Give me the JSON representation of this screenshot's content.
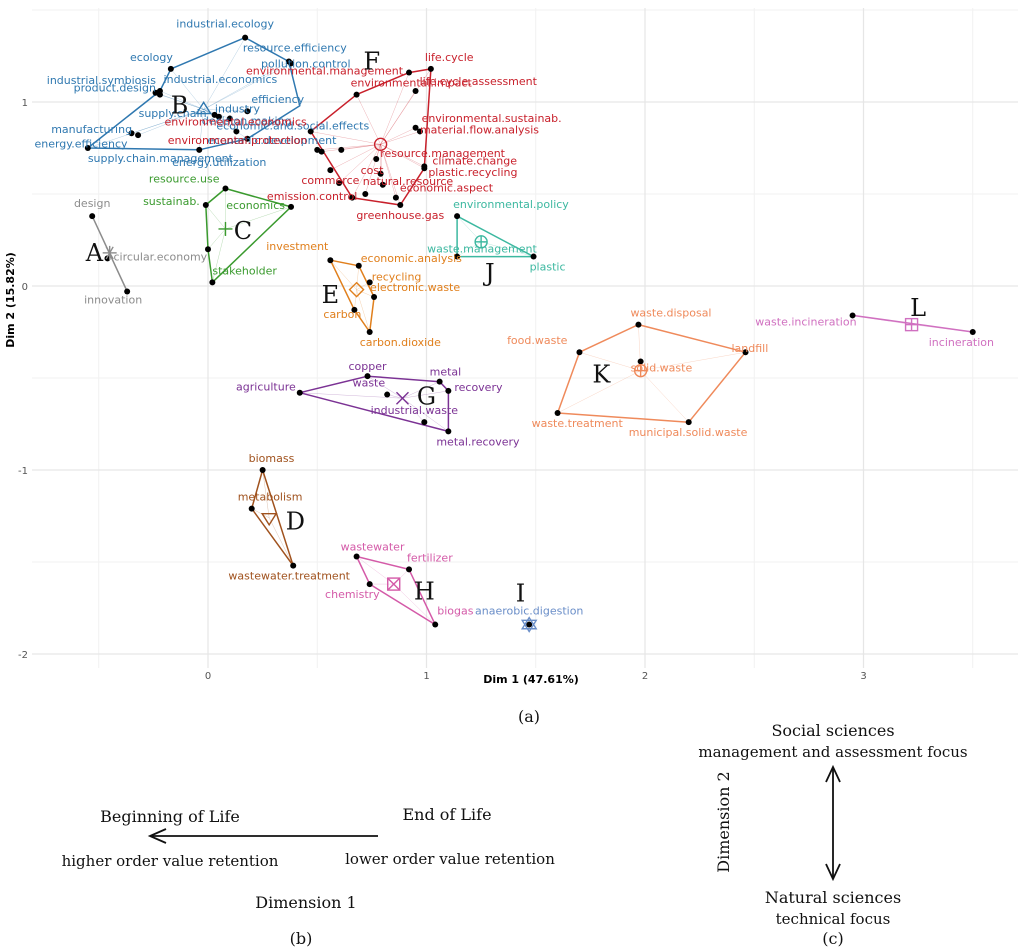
{
  "chart_data": {
    "type": "scatter",
    "title": "",
    "xlabel": "Dim 1 (47.61%)",
    "ylabel": "Dim 2 (15.82%)",
    "xlim": [
      -0.95,
      3.7
    ],
    "ylim": [
      -2.05,
      1.55
    ],
    "xticks": [
      0,
      1,
      2,
      3
    ],
    "yticks": [
      -2,
      -1,
      0,
      1
    ],
    "grid": true,
    "caption": "(a)",
    "clusters": [
      {
        "label": "A",
        "color": "#8c8c8c",
        "marker": "*",
        "center": [
          -0.45,
          0.18
        ],
        "letter_pos": [
          -0.52,
          0.18
        ],
        "points": [
          {
            "label": "design",
            "x": -0.53,
            "y": 0.38
          },
          {
            "label": "circular.economy",
            "x": -0.46,
            "y": 0.15
          },
          {
            "label": "innovation",
            "x": -0.37,
            "y": -0.03
          }
        ],
        "hull": [
          [
            -0.53,
            0.38
          ],
          [
            -0.37,
            -0.03
          ]
        ]
      },
      {
        "label": "B",
        "color": "#2f78b0",
        "marker": "triangle",
        "center": [
          -0.02,
          0.96
        ],
        "letter_pos": [
          -0.13,
          0.98
        ],
        "points": [
          {
            "label": "industrial.ecology",
            "x": 0.17,
            "y": 1.35
          },
          {
            "label": "resource.efficiency",
            "x": 0.37,
            "y": 1.22
          },
          {
            "label": "ecology",
            "x": -0.17,
            "y": 1.18
          },
          {
            "label": "industrial.symbiosis",
            "x": -0.22,
            "y": 1.06
          },
          {
            "label": "product.design",
            "x": -0.22,
            "y": 1.04
          },
          {
            "label": "industrial.economics",
            "x": -0.24,
            "y": 1.05
          },
          {
            "label": "pollution.control",
            "x": 0.38,
            "y": 1.21
          },
          {
            "label": "supply.chain",
            "x": 0.03,
            "y": 0.93
          },
          {
            "label": "industry",
            "x": 0.05,
            "y": 0.92
          },
          {
            "label": "efficiency",
            "x": 0.18,
            "y": 0.95
          },
          {
            "label": "decision.making",
            "x": 0.1,
            "y": 0.91
          },
          {
            "label": "economic.and.social.effects",
            "x": 0.13,
            "y": 0.84
          },
          {
            "label": "manufacturing",
            "x": -0.32,
            "y": 0.82
          },
          {
            "label": "economic.development",
            "x": 0.18,
            "y": 0.8
          },
          {
            "label": "energy.efficiency",
            "x": -0.35,
            "y": 0.83
          },
          {
            "label": "energy.utilization",
            "x": -0.04,
            "y": 0.74
          },
          {
            "label": "supply.chain.management",
            "x": -0.55,
            "y": 0.75
          }
        ],
        "hull": [
          [
            0.17,
            1.35
          ],
          [
            0.37,
            1.22
          ],
          [
            0.42,
            0.98
          ],
          [
            0.18,
            0.8
          ],
          [
            -0.04,
            0.74
          ],
          [
            -0.55,
            0.75
          ],
          [
            -0.22,
            1.06
          ],
          [
            -0.17,
            1.18
          ]
        ]
      },
      {
        "label": "C",
        "color": "#3a9a2e",
        "marker": "+",
        "center": [
          0.08,
          0.31
        ],
        "letter_pos": [
          0.16,
          0.3
        ],
        "points": [
          {
            "label": "resource.use",
            "x": 0.08,
            "y": 0.53
          },
          {
            "label": "economics",
            "x": 0.38,
            "y": 0.43
          },
          {
            "label": "sustainab.",
            "x": -0.01,
            "y": 0.44
          },
          {
            "label": "stakeholder",
            "x": 0.02,
            "y": 0.02
          },
          {
            "label": "",
            "x": 0.0,
            "y": 0.2
          }
        ],
        "hull": [
          [
            0.08,
            0.53
          ],
          [
            0.38,
            0.43
          ],
          [
            0.02,
            0.02
          ],
          [
            0.0,
            0.2
          ],
          [
            -0.01,
            0.44
          ]
        ]
      },
      {
        "label": "D",
        "color": "#a0521e",
        "marker": "triangle-down",
        "center": [
          0.28,
          -1.26
        ],
        "letter_pos": [
          0.4,
          -1.28
        ],
        "points": [
          {
            "label": "biomass",
            "x": 0.25,
            "y": -1.0
          },
          {
            "label": "metabolism",
            "x": 0.2,
            "y": -1.21
          },
          {
            "label": "wastewater.treatment",
            "x": 0.39,
            "y": -1.52
          }
        ],
        "hull": [
          [
            0.25,
            -1.0
          ],
          [
            0.39,
            -1.52
          ],
          [
            0.2,
            -1.21
          ]
        ]
      },
      {
        "label": "E",
        "color": "#e07f1c",
        "marker": "diamond",
        "center": [
          0.68,
          -0.02
        ],
        "letter_pos": [
          0.56,
          -0.05
        ],
        "points": [
          {
            "label": "investment",
            "x": 0.56,
            "y": 0.14
          },
          {
            "label": "economic.analysis",
            "x": 0.69,
            "y": 0.11
          },
          {
            "label": "recycling",
            "x": 0.74,
            "y": 0.02
          },
          {
            "label": "electronic.waste",
            "x": 0.76,
            "y": -0.06
          },
          {
            "label": "carbon",
            "x": 0.67,
            "y": -0.13
          },
          {
            "label": "carbon.dioxide",
            "x": 0.74,
            "y": -0.25
          }
        ],
        "hull": [
          [
            0.56,
            0.14
          ],
          [
            0.69,
            0.11
          ],
          [
            0.76,
            -0.06
          ],
          [
            0.74,
            -0.25
          ],
          [
            0.67,
            -0.13
          ]
        ]
      },
      {
        "label": "F",
        "color": "#c8202b",
        "marker": "circle",
        "center": [
          0.79,
          0.77
        ],
        "letter_pos": [
          0.75,
          1.22
        ],
        "points": [
          {
            "label": "life.cycle",
            "x": 1.02,
            "y": 1.18
          },
          {
            "label": "environmental.management",
            "x": 0.92,
            "y": 1.16
          },
          {
            "label": "life.cycle.assessment",
            "x": 0.95,
            "y": 1.06
          },
          {
            "label": "environmental.impact",
            "x": 0.68,
            "y": 1.04
          },
          {
            "label": "environmental.sustainab.",
            "x": 0.95,
            "y": 0.86
          },
          {
            "label": "material.flow.analysis",
            "x": 0.97,
            "y": 0.84
          },
          {
            "label": "environmental.economics",
            "x": 0.47,
            "y": 0.84
          },
          {
            "label": "resource.management",
            "x": 0.77,
            "y": 0.69
          },
          {
            "label": "climate.change",
            "x": 0.99,
            "y": 0.65
          },
          {
            "label": "cost",
            "x": 0.79,
            "y": 0.61
          },
          {
            "label": "plastic.recycling",
            "x": 0.99,
            "y": 0.64
          },
          {
            "label": "natural.resource",
            "x": 0.8,
            "y": 0.55
          },
          {
            "label": "environmental.protection",
            "x": 0.5,
            "y": 0.74
          },
          {
            "label": "economic.aspect",
            "x": 0.86,
            "y": 0.48
          },
          {
            "label": "emission.control",
            "x": 0.72,
            "y": 0.5
          },
          {
            "label": "commerce",
            "x": 0.56,
            "y": 0.63
          },
          {
            "label": "greenhouse.gas",
            "x": 0.88,
            "y": 0.44
          },
          {
            "label": "",
            "x": 0.52,
            "y": 0.73
          },
          {
            "label": "",
            "x": 0.61,
            "y": 0.74
          },
          {
            "label": "",
            "x": 0.6,
            "y": 0.56
          },
          {
            "label": "",
            "x": 0.66,
            "y": 0.48
          }
        ],
        "hull": [
          [
            0.92,
            1.16
          ],
          [
            1.02,
            1.18
          ],
          [
            0.99,
            0.64
          ],
          [
            0.88,
            0.44
          ],
          [
            0.66,
            0.48
          ],
          [
            0.47,
            0.84
          ],
          [
            0.68,
            1.04
          ]
        ]
      },
      {
        "label": "G",
        "color": "#7b3294",
        "marker": "x",
        "center": [
          0.89,
          -0.61
        ],
        "letter_pos": [
          1.0,
          -0.6
        ],
        "points": [
          {
            "label": "copper",
            "x": 0.73,
            "y": -0.49
          },
          {
            "label": "metal",
            "x": 1.06,
            "y": -0.52
          },
          {
            "label": "agriculture",
            "x": 0.42,
            "y": -0.58
          },
          {
            "label": "waste",
            "x": 0.82,
            "y": -0.59
          },
          {
            "label": "recovery",
            "x": 1.1,
            "y": -0.57
          },
          {
            "label": "industrial.waste",
            "x": 0.99,
            "y": -0.74
          },
          {
            "label": "metal.recovery",
            "x": 1.1,
            "y": -0.79
          }
        ],
        "hull": [
          [
            0.73,
            -0.49
          ],
          [
            1.06,
            -0.52
          ],
          [
            1.1,
            -0.57
          ],
          [
            1.1,
            -0.79
          ],
          [
            0.42,
            -0.58
          ]
        ]
      },
      {
        "label": "H",
        "color": "#d45aa8",
        "marker": "boxx",
        "center": [
          0.85,
          -1.62
        ],
        "letter_pos": [
          0.99,
          -1.66
        ],
        "points": [
          {
            "label": "wastewater",
            "x": 0.68,
            "y": -1.47
          },
          {
            "label": "fertilizer",
            "x": 0.92,
            "y": -1.54
          },
          {
            "label": "chemistry",
            "x": 0.74,
            "y": -1.62
          },
          {
            "label": "biogas",
            "x": 1.04,
            "y": -1.84
          }
        ],
        "hull": [
          [
            0.68,
            -1.47
          ],
          [
            0.92,
            -1.54
          ],
          [
            1.04,
            -1.84
          ],
          [
            0.74,
            -1.62
          ]
        ]
      },
      {
        "label": "I",
        "color": "#6a8ec8",
        "marker": "star6",
        "center": [
          1.47,
          -1.84
        ],
        "letter_pos": [
          1.43,
          -1.67
        ],
        "points": [
          {
            "label": "anaerobic.digestion",
            "x": 1.47,
            "y": -1.84
          }
        ],
        "hull": []
      },
      {
        "label": "J",
        "color": "#3cb8a0",
        "marker": "circle-plus",
        "center": [
          1.25,
          0.24
        ],
        "letter_pos": [
          1.29,
          0.07
        ],
        "points": [
          {
            "label": "environmental.policy",
            "x": 1.14,
            "y": 0.38
          },
          {
            "label": "waste.management",
            "x": 1.14,
            "y": 0.16
          },
          {
            "label": "plastic",
            "x": 1.49,
            "y": 0.16
          }
        ],
        "hull": [
          [
            1.14,
            0.38
          ],
          [
            1.49,
            0.16
          ],
          [
            1.14,
            0.16
          ]
        ]
      },
      {
        "label": "K",
        "color": "#ef8a5b",
        "marker": "circle-plus",
        "center": [
          1.98,
          -0.46
        ],
        "letter_pos": [
          1.8,
          -0.48
        ],
        "points": [
          {
            "label": "waste.disposal",
            "x": 1.97,
            "y": -0.21
          },
          {
            "label": "food.waste",
            "x": 1.7,
            "y": -0.36
          },
          {
            "label": "landfill",
            "x": 2.46,
            "y": -0.36
          },
          {
            "label": "solid.waste",
            "x": 1.98,
            "y": -0.41
          },
          {
            "label": "waste.treatment",
            "x": 1.6,
            "y": -0.69
          },
          {
            "label": "municipal.solid.waste",
            "x": 2.2,
            "y": -0.74
          }
        ],
        "hull": [
          [
            1.97,
            -0.21
          ],
          [
            2.46,
            -0.36
          ],
          [
            2.2,
            -0.74
          ],
          [
            1.6,
            -0.69
          ],
          [
            1.7,
            -0.36
          ]
        ]
      },
      {
        "label": "L",
        "color": "#d070c0",
        "marker": "boxplus",
        "center": [
          3.22,
          -0.21
        ],
        "letter_pos": [
          3.25,
          -0.12
        ],
        "points": [
          {
            "label": "waste.incineration",
            "x": 2.95,
            "y": -0.16
          },
          {
            "label": "incineration",
            "x": 3.5,
            "y": -0.25
          }
        ],
        "hull": [
          [
            2.95,
            -0.16
          ],
          [
            3.5,
            -0.25
          ]
        ]
      }
    ]
  },
  "panel_b": {
    "beginning": "Beginning of Life",
    "end": "End of Life",
    "higher": "higher order value retention",
    "lower": "lower order value retention",
    "axis": "Dimension 1",
    "caption": "(b)"
  },
  "panel_c": {
    "top1": "Social sciences",
    "top2": "management and assessment focus",
    "bottom1": "Natural sciences",
    "bottom2": "technical focus",
    "axis": "Dimension 2",
    "caption": "(c)"
  }
}
